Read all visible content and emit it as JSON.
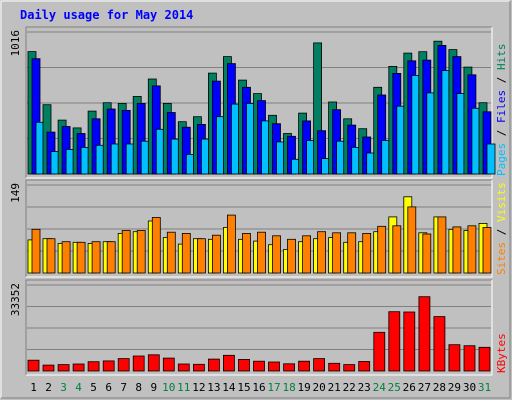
{
  "chart_data": {
    "title": "Daily usage for May 2014",
    "days": [
      "1",
      "2",
      "3",
      "4",
      "5",
      "6",
      "7",
      "8",
      "9",
      "10",
      "11",
      "12",
      "13",
      "14",
      "15",
      "16",
      "17",
      "18",
      "19",
      "20",
      "21",
      "22",
      "23",
      "24",
      "25",
      "26",
      "27",
      "28",
      "29",
      "30",
      "31"
    ],
    "weekend_days": [
      "3",
      "4",
      "10",
      "11",
      "17",
      "18",
      "24",
      "25",
      "31"
    ],
    "colors": {
      "background": "#c0c0c0",
      "frame": "#000080",
      "title": "#0000ff",
      "grid": "#808080",
      "hits": "#008060",
      "files": "#0000ff",
      "pages": "#00c0ff",
      "visits": "#ffff00",
      "sites": "#ff8000",
      "kbytes": "#ff0000",
      "weekday_label": "#000000",
      "weekend_label": "#008040"
    },
    "panels": [
      {
        "type": "bar",
        "id": "hits-files-pages",
        "ymax_label": "1016",
        "ymax": 1016,
        "legend": [
          {
            "text": "Pages",
            "color": "#00c0ff"
          },
          {
            "text": " / ",
            "color": "#000000"
          },
          {
            "text": "Files",
            "color": "#0000ff"
          },
          {
            "text": " / ",
            "color": "#000000"
          },
          {
            "text": "Hits",
            "color": "#008060"
          }
        ],
        "series": [
          {
            "name": "Hits",
            "color": "#008060",
            "values": [
              876,
              496,
              386,
              330,
              450,
              510,
              505,
              555,
              680,
              505,
              374,
              410,
              722,
              840,
              672,
              575,
              420,
              290,
              436,
              938,
              515,
              395,
              324,
              620,
              770,
              865,
              875,
              950,
              890,
              765,
              510
            ]
          },
          {
            "name": "Files",
            "color": "#0000ff",
            "values": [
              825,
              300,
              340,
              290,
              395,
              465,
              455,
              505,
              630,
              440,
              335,
              355,
              665,
              790,
              620,
              525,
              360,
              270,
              380,
              310,
              460,
              350,
              265,
              565,
              720,
              810,
              815,
              920,
              840,
              710,
              445
            ]
          },
          {
            "name": "Pages",
            "color": "#00c0ff",
            "values": [
              370,
              160,
              175,
              190,
              205,
              215,
              215,
              235,
              320,
              250,
              140,
              250,
              410,
              500,
              505,
              380,
              230,
              105,
              240,
              110,
              235,
              190,
              150,
              240,
              485,
              705,
              580,
              740,
              575,
              470,
              215
            ]
          }
        ]
      },
      {
        "type": "bar",
        "id": "visits-sites",
        "ymax_label": "149",
        "ymax": 149,
        "legend": [
          {
            "text": "Sites",
            "color": "#ff8000"
          },
          {
            "text": " / ",
            "color": "#000000"
          },
          {
            "text": "Visits",
            "color": "#ffff00"
          }
        ],
        "series": [
          {
            "name": "Visits",
            "color": "#ffff00",
            "values": [
              56,
              58,
              50,
              52,
              50,
              53,
              67,
              70,
              88,
              60,
              49,
              58,
              57,
              77,
              57,
              54,
              48,
              40,
              53,
              58,
              60,
              52,
              53,
              70,
              95,
              129,
              68,
              95,
              74,
              72,
              84
            ]
          },
          {
            "name": "Sites",
            "color": "#ff8000",
            "values": [
              74,
              58,
              53,
              52,
              53,
              53,
              72,
              72,
              94,
              69,
              67,
              58,
              64,
              98,
              67,
              69,
              63,
              57,
              63,
              70,
              68,
              68,
              67,
              79,
              80,
              112,
              66,
              95,
              78,
              80,
              77
            ]
          }
        ]
      },
      {
        "type": "bar",
        "id": "kbytes",
        "ymax_label": "33352",
        "ymax": 33352,
        "legend": [
          {
            "text": "KBytes",
            "color": "#ff0000"
          }
        ],
        "series": [
          {
            "name": "KBytes",
            "color": "#ff0000",
            "values": [
              4200,
              2300,
              2500,
              2700,
              3600,
              3900,
              4800,
              5800,
              6300,
              5000,
              2700,
              2600,
              4600,
              6100,
              4500,
              3800,
              3500,
              2800,
              3800,
              4800,
              3000,
              2500,
              3700,
              15000,
              23000,
              22900,
              28800,
              21100,
              10200,
              9800,
              9200
            ]
          }
        ]
      }
    ]
  }
}
